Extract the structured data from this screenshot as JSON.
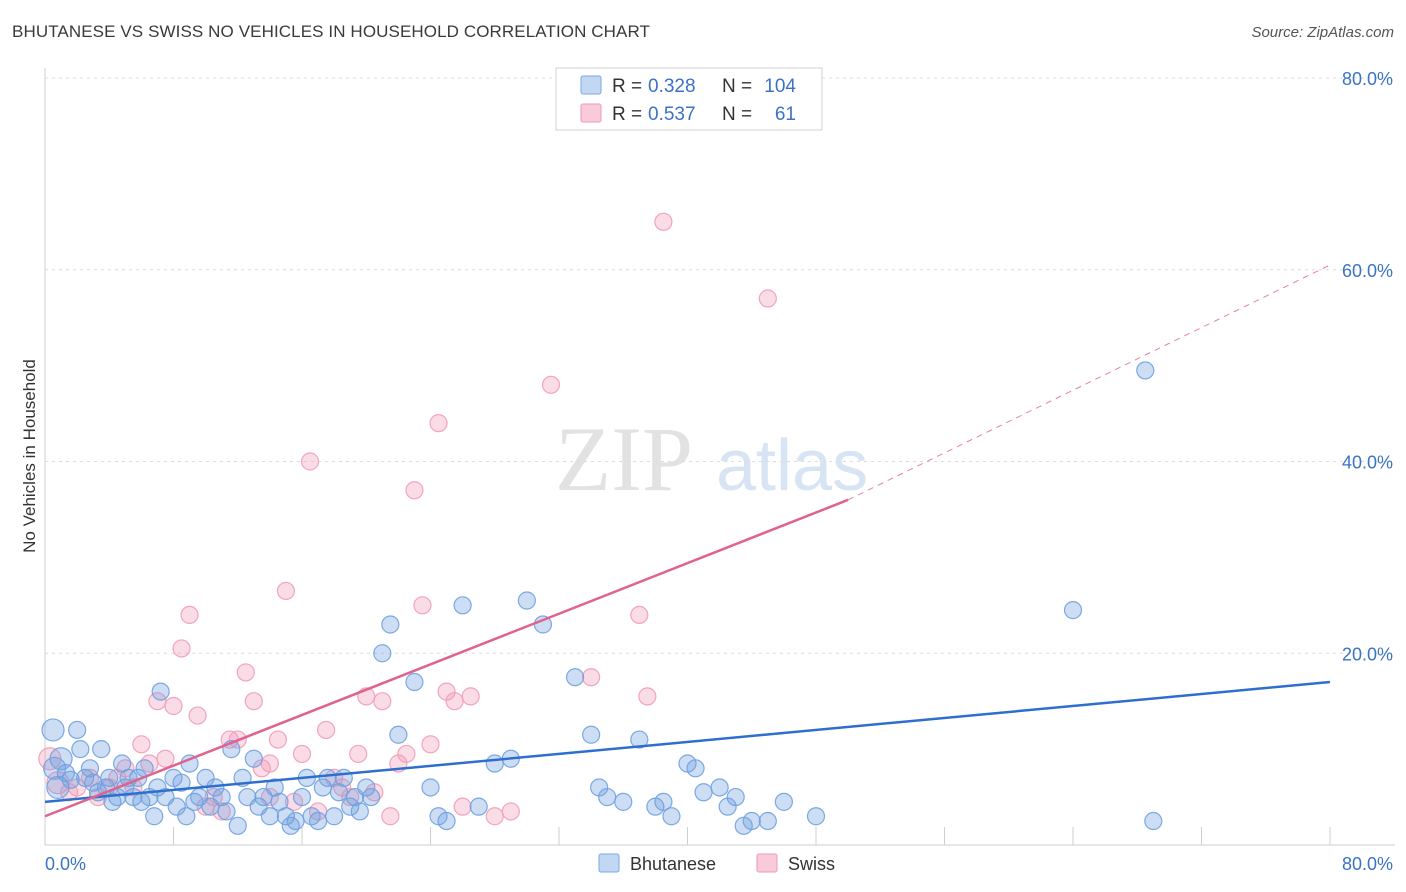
{
  "header": {
    "title": "BHUTANESE VS SWISS NO VEHICLES IN HOUSEHOLD CORRELATION CHART",
    "source": "Source: ZipAtlas.com"
  },
  "watermark": {
    "zip": "ZIP",
    "atlas": "atlas"
  },
  "legend": {
    "rows": [
      {
        "r_label": "R =",
        "r_value": "0.328",
        "n_label": "N =",
        "n_value": "104",
        "color": "#9ec0ec"
      },
      {
        "r_label": "R =",
        "r_value": "0.537",
        "n_label": "N =",
        "n_value": "61",
        "color": "#f5b8cb"
      }
    ]
  },
  "chart_data": {
    "type": "scatter",
    "title": "BHUTANESE VS SWISS NO VEHICLES IN HOUSEHOLD CORRELATION CHART",
    "xlabel": "",
    "ylabel": "No Vehicles in Household",
    "xlim": [
      0,
      80
    ],
    "ylim": [
      0,
      80
    ],
    "x_tick_labels": [
      "0.0%",
      "80.0%"
    ],
    "y_ticks": [
      20,
      40,
      60,
      80
    ],
    "y_tick_labels": [
      "20.0%",
      "40.0%",
      "60.0%",
      "80.0%"
    ],
    "grid": true,
    "legend_position": "top-center",
    "series": [
      {
        "name": "Bhutanese",
        "color": "#6fa0e0",
        "line_color": "#2e6fce",
        "trend": {
          "x": [
            0,
            80
          ],
          "y": [
            4.5,
            17.0
          ],
          "dashed_extension": false
        },
        "points": [
          [
            0.5,
            12
          ],
          [
            0.6,
            8
          ],
          [
            0.8,
            6
          ],
          [
            1.0,
            9
          ],
          [
            1.3,
            7.5
          ],
          [
            1.6,
            6.8
          ],
          [
            2.0,
            12
          ],
          [
            2.2,
            10
          ],
          [
            2.5,
            7
          ],
          [
            2.8,
            8
          ],
          [
            3.0,
            6.5
          ],
          [
            3.3,
            5.5
          ],
          [
            3.5,
            10
          ],
          [
            3.8,
            6
          ],
          [
            4.0,
            7
          ],
          [
            4.2,
            4.5
          ],
          [
            4.5,
            5
          ],
          [
            4.8,
            8.5
          ],
          [
            5.0,
            6
          ],
          [
            5.2,
            7
          ],
          [
            5.5,
            5
          ],
          [
            5.8,
            7
          ],
          [
            6.0,
            4.5
          ],
          [
            6.2,
            8
          ],
          [
            6.5,
            5
          ],
          [
            6.8,
            3
          ],
          [
            7.0,
            6
          ],
          [
            7.2,
            16
          ],
          [
            7.5,
            5
          ],
          [
            8.0,
            7
          ],
          [
            8.2,
            4
          ],
          [
            8.5,
            6.5
          ],
          [
            8.8,
            3
          ],
          [
            9.0,
            8.5
          ],
          [
            9.3,
            4.5
          ],
          [
            9.6,
            5
          ],
          [
            10.0,
            7
          ],
          [
            10.3,
            4
          ],
          [
            10.6,
            6
          ],
          [
            11.0,
            5
          ],
          [
            11.3,
            3.5
          ],
          [
            11.6,
            10
          ],
          [
            12.0,
            2
          ],
          [
            12.3,
            7
          ],
          [
            12.6,
            5
          ],
          [
            13.0,
            9
          ],
          [
            13.3,
            4
          ],
          [
            13.6,
            5
          ],
          [
            14.0,
            3
          ],
          [
            14.3,
            6
          ],
          [
            14.6,
            4.5
          ],
          [
            15.0,
            3
          ],
          [
            15.3,
            2
          ],
          [
            15.6,
            2.5
          ],
          [
            16.0,
            5
          ],
          [
            16.3,
            7
          ],
          [
            16.6,
            3
          ],
          [
            17.0,
            2.5
          ],
          [
            17.3,
            6
          ],
          [
            17.6,
            7
          ],
          [
            18.0,
            3
          ],
          [
            18.3,
            5.5
          ],
          [
            18.6,
            7
          ],
          [
            19.0,
            4
          ],
          [
            19.3,
            5
          ],
          [
            19.6,
            3.5
          ],
          [
            20.0,
            6
          ],
          [
            20.3,
            5
          ],
          [
            21.0,
            20
          ],
          [
            21.5,
            23
          ],
          [
            22.0,
            11.5
          ],
          [
            23.0,
            17
          ],
          [
            24.0,
            6
          ],
          [
            24.5,
            3
          ],
          [
            25.0,
            2.5
          ],
          [
            26.0,
            25
          ],
          [
            27.0,
            4
          ],
          [
            28.0,
            8.5
          ],
          [
            29.0,
            9
          ],
          [
            30.0,
            25.5
          ],
          [
            31.0,
            23
          ],
          [
            33.0,
            17.5
          ],
          [
            34.0,
            11.5
          ],
          [
            34.5,
            6
          ],
          [
            35.0,
            5
          ],
          [
            36.0,
            4.5
          ],
          [
            37.0,
            11
          ],
          [
            38.0,
            4
          ],
          [
            38.5,
            4.5
          ],
          [
            39.0,
            3
          ],
          [
            40.0,
            8.5
          ],
          [
            40.5,
            8
          ],
          [
            41.0,
            5.5
          ],
          [
            42.0,
            6
          ],
          [
            42.5,
            4
          ],
          [
            43.0,
            5
          ],
          [
            43.5,
            2
          ],
          [
            44.0,
            2.5
          ],
          [
            45.0,
            2.5
          ],
          [
            46.0,
            4.5
          ],
          [
            48.0,
            3
          ],
          [
            64.0,
            24.5
          ],
          [
            68.5,
            49.5
          ],
          [
            69,
            2.5
          ]
        ]
      },
      {
        "name": "Swiss",
        "color": "#f29bb6",
        "line_color": "#e0628e",
        "trend": {
          "x": [
            0,
            50
          ],
          "y": [
            3.0,
            36.0
          ],
          "dashed_extension": true,
          "extension_to": [
            80,
            60.5
          ]
        },
        "points": [
          [
            0.3,
            9
          ],
          [
            0.8,
            6.5
          ],
          [
            1.5,
            5.5
          ],
          [
            2.0,
            6
          ],
          [
            2.8,
            7
          ],
          [
            3.3,
            5
          ],
          [
            4.0,
            6
          ],
          [
            4.5,
            7
          ],
          [
            5.0,
            8
          ],
          [
            5.5,
            6
          ],
          [
            6.0,
            10.5
          ],
          [
            6.5,
            8.5
          ],
          [
            7.0,
            15
          ],
          [
            7.5,
            9
          ],
          [
            8.0,
            14.5
          ],
          [
            8.5,
            20.5
          ],
          [
            9.0,
            24
          ],
          [
            9.5,
            13.5
          ],
          [
            10.0,
            4
          ],
          [
            10.5,
            5
          ],
          [
            11.0,
            3.5
          ],
          [
            11.5,
            11
          ],
          [
            12.0,
            11
          ],
          [
            12.5,
            18
          ],
          [
            13.0,
            15
          ],
          [
            13.5,
            8
          ],
          [
            14.0,
            5
          ],
          [
            14.5,
            11
          ],
          [
            15.0,
            26.5
          ],
          [
            15.5,
            4.5
          ],
          [
            16.0,
            9.5
          ],
          [
            16.5,
            40
          ],
          [
            17.0,
            3.5
          ],
          [
            17.5,
            12
          ],
          [
            18.0,
            7
          ],
          [
            18.5,
            6
          ],
          [
            19.0,
            5
          ],
          [
            19.5,
            9.5
          ],
          [
            20.0,
            15.5
          ],
          [
            20.5,
            5.5
          ],
          [
            21.0,
            15
          ],
          [
            21.5,
            3
          ],
          [
            22.0,
            8.5
          ],
          [
            22.5,
            9.5
          ],
          [
            23.0,
            37
          ],
          [
            23.5,
            25
          ],
          [
            24.0,
            10.5
          ],
          [
            24.5,
            44
          ],
          [
            25.0,
            16
          ],
          [
            25.5,
            15
          ],
          [
            26.0,
            4
          ],
          [
            26.5,
            15.5
          ],
          [
            28.0,
            3
          ],
          [
            29.0,
            3.5
          ],
          [
            31.5,
            48
          ],
          [
            34.0,
            17.5
          ],
          [
            37.0,
            24
          ],
          [
            37.5,
            15.5
          ],
          [
            38.5,
            65
          ],
          [
            45.0,
            57
          ],
          [
            14,
            8.5
          ]
        ]
      }
    ]
  },
  "bottom_legend": [
    {
      "label": "Bhutanese",
      "color": "#9ec0ec"
    },
    {
      "label": "Swiss",
      "color": "#f5b8cb"
    }
  ]
}
